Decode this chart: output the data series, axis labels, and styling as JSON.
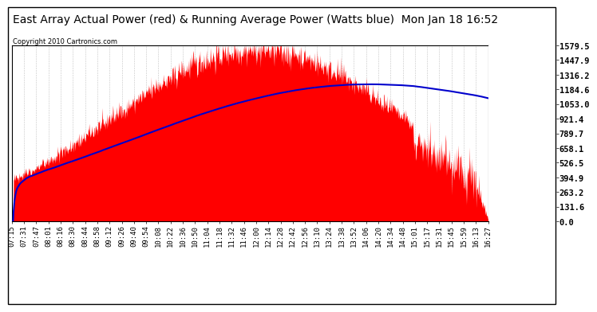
{
  "title": "East Array Actual Power (red) & Running Average Power (Watts blue)  Mon Jan 18 16:52",
  "copyright": "Copyright 2010 Cartronics.com",
  "background_color": "#ffffff",
  "plot_bg_color": "#ffffff",
  "grid_color": "#aaaaaa",
  "y_max": 1579.5,
  "y_min": 0.0,
  "y_ticks": [
    0.0,
    131.6,
    263.2,
    394.9,
    526.5,
    658.1,
    789.7,
    921.4,
    1053.0,
    1184.6,
    1316.2,
    1447.9,
    1579.5
  ],
  "x_tick_labels": [
    "07:15",
    "07:31",
    "07:47",
    "08:01",
    "08:16",
    "08:30",
    "08:44",
    "08:58",
    "09:12",
    "09:26",
    "09:40",
    "09:54",
    "10:08",
    "10:22",
    "10:36",
    "10:50",
    "11:04",
    "11:18",
    "11:32",
    "11:46",
    "12:00",
    "12:14",
    "12:28",
    "12:42",
    "12:56",
    "13:10",
    "13:24",
    "13:38",
    "13:52",
    "14:06",
    "14:20",
    "14:34",
    "14:48",
    "15:01",
    "15:17",
    "15:31",
    "15:45",
    "15:59",
    "16:13",
    "16:27"
  ],
  "fill_color": "#ff0000",
  "line_color": "#0000cc",
  "title_fontsize": 10,
  "copyright_fontsize": 6,
  "tick_fontsize": 6.5,
  "ytick_fontsize": 7.5
}
